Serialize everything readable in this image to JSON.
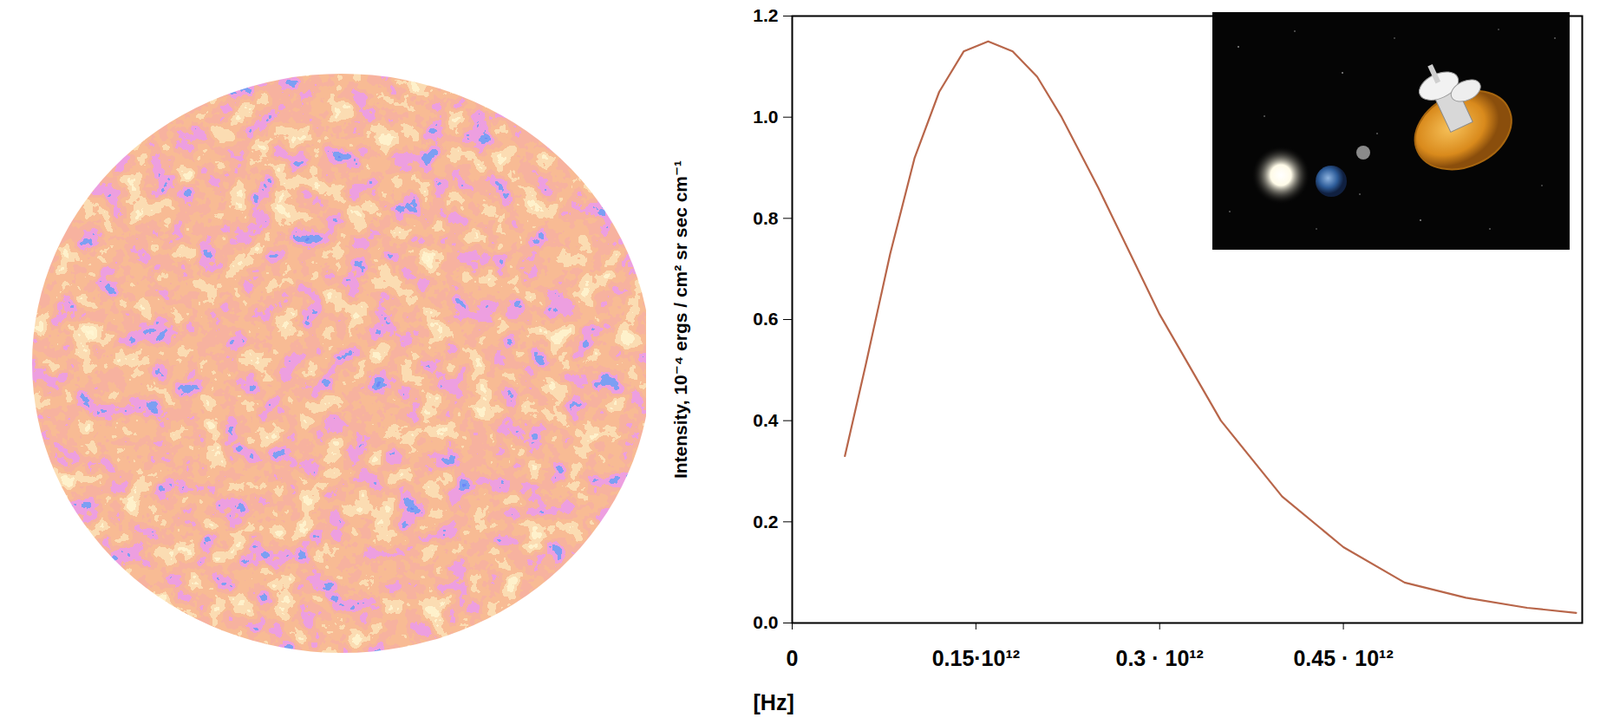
{
  "chart_data": {
    "type": "line",
    "x_label": "[Hz]",
    "y_label": "Intensity, 10⁻⁴ ergs / cm² sr sec cm⁻¹",
    "x": [
      43000000000,
      60000000000,
      80000000000,
      100000000000,
      120000000000,
      140000000000,
      160000000000,
      180000000000,
      200000000000,
      220000000000,
      250000000000,
      280000000000,
      300000000000,
      350000000000,
      400000000000,
      450000000000,
      500000000000,
      550000000000,
      600000000000,
      640000000000
    ],
    "values": [
      0.33,
      0.51,
      0.73,
      0.92,
      1.05,
      1.13,
      1.15,
      1.13,
      1.08,
      1.0,
      0.86,
      0.71,
      0.61,
      0.4,
      0.25,
      0.15,
      0.08,
      0.05,
      0.03,
      0.02
    ],
    "color": "#b8664a",
    "xlim": [
      0,
      645000000000
    ],
    "xticks": [
      0,
      {
        "value": 150000000000,
        "label": "0.15·10¹²"
      },
      {
        "value": 300000000000,
        "label": "0.3 · 10¹²"
      },
      {
        "value": 450000000000,
        "label": "0.45 · 10¹²"
      }
    ],
    "ylim": [
      0,
      1.2
    ],
    "yticks": [
      {
        "value": 0,
        "label": "0.0"
      },
      0.2,
      0.4,
      0.6,
      0.8,
      {
        "value": 1,
        "label": "1.0"
      },
      1.2
    ],
    "grid": false
  }
}
